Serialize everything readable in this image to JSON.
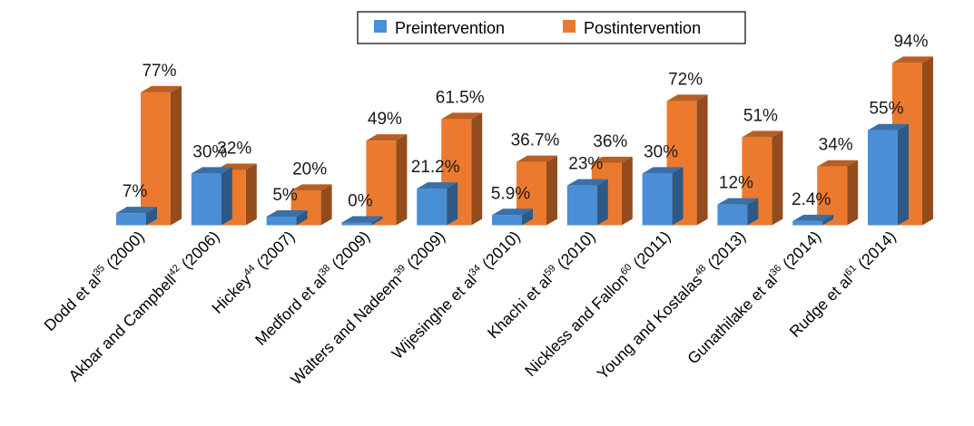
{
  "chart_data": {
    "type": "bar",
    "style": "3d-clustered-column",
    "categories": [
      {
        "author": "Dodd et al",
        "ref": "35",
        "year": " (2000)"
      },
      {
        "author": "Akbar and Campbell",
        "ref": "42",
        "year": " (2006)"
      },
      {
        "author": "Hickey",
        "ref": "44",
        "year": " (2007)"
      },
      {
        "author": "Medford et al",
        "ref": "38",
        "year": " (2009)"
      },
      {
        "author": "Walters and Nadeem",
        "ref": "39",
        "year": " (2009)"
      },
      {
        "author": "Wijesinghe et al",
        "ref": "34",
        "year": " (2010)"
      },
      {
        "author": "Khachi et al",
        "ref": "59",
        "year": " (2010)"
      },
      {
        "author": "Nickless and Fallon",
        "ref": "60",
        "year": " (2011)"
      },
      {
        "author": "Young and Kostalas",
        "ref": "48",
        "year": " (2013)"
      },
      {
        "author": "Gunathilake et al",
        "ref": "36",
        "year": " (2014)"
      },
      {
        "author": "Rudge et al",
        "ref": "61",
        "year": " (2014)"
      }
    ],
    "series": [
      {
        "name": "Preintervention",
        "color": "#4a8fd6",
        "values": [
          7,
          30,
          5,
          0,
          21.2,
          5.9,
          23,
          30,
          12,
          2.4,
          55
        ],
        "labels": [
          "7%",
          "30%",
          "5%",
          "0%",
          "21.2%",
          "5.9%",
          "23%",
          "30%",
          "12%",
          "2.4%",
          "55%"
        ]
      },
      {
        "name": "Postintervention",
        "color": "#ec7a2e",
        "values": [
          77,
          32,
          20,
          49,
          61.5,
          36.7,
          36,
          72,
          51,
          34,
          94
        ],
        "labels": [
          "77%",
          "32%",
          "20%",
          "49%",
          "61.5%",
          "36.7%",
          "36%",
          "72%",
          "51%",
          "34%",
          "94%"
        ]
      }
    ],
    "ylim": [
      0,
      100
    ],
    "grid": false,
    "legend_position": "top-center",
    "title": "",
    "xlabel": "",
    "ylabel": ""
  }
}
